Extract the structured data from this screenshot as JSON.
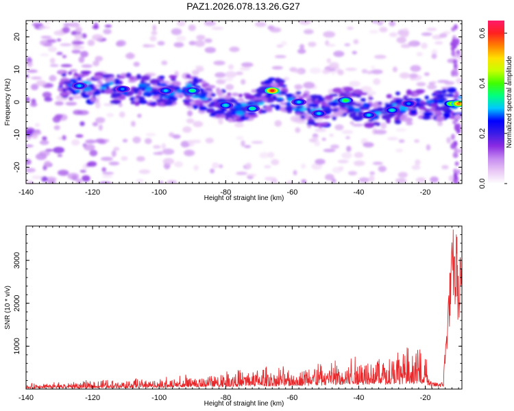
{
  "title": "PAZ1.2026.078.13.26.G27",
  "chart_data": [
    {
      "type": "heatmap",
      "name": "spectrogram",
      "xlabel": "Height of straight line (km)",
      "ylabel": "Frequency (Hz)",
      "xlim": [
        -140,
        -9
      ],
      "ylim": [
        -25,
        25
      ],
      "xticks": [
        -140,
        -120,
        -100,
        -80,
        -60,
        -40,
        -20
      ],
      "yticks": [
        -20,
        -10,
        0,
        10,
        20
      ],
      "colorbar": {
        "label": "Normalized spectral amplitude",
        "range": [
          0.0,
          0.65
        ],
        "ticks": [
          0.0,
          0.2,
          0.4,
          0.6
        ],
        "colors": [
          "#ffffff",
          "#e9c8f5",
          "#c58af0",
          "#8a2be2",
          "#3a1ce6",
          "#0000ff",
          "#00c8ff",
          "#00ff80",
          "#40ff00",
          "#c8ff00",
          "#ffe000",
          "#ff8000",
          "#ff2020",
          "#ff1a6a"
        ]
      },
      "ridge": [
        {
          "x": -128,
          "y": 6
        },
        {
          "x": -120,
          "y": 4.5
        },
        {
          "x": -110,
          "y": 4
        },
        {
          "x": -100,
          "y": 3.5
        },
        {
          "x": -90,
          "y": 3.5
        },
        {
          "x": -85,
          "y": 1
        },
        {
          "x": -80,
          "y": -1
        },
        {
          "x": -75,
          "y": -2
        },
        {
          "x": -70,
          "y": 1
        },
        {
          "x": -65,
          "y": 3
        },
        {
          "x": -60,
          "y": 0
        },
        {
          "x": -55,
          "y": -2
        },
        {
          "x": -50,
          "y": -3
        },
        {
          "x": -45,
          "y": 0
        },
        {
          "x": -40,
          "y": -1
        },
        {
          "x": -35,
          "y": -4
        },
        {
          "x": -30,
          "y": -2
        },
        {
          "x": -25,
          "y": -1
        },
        {
          "x": -20,
          "y": -0.5
        },
        {
          "x": -15,
          "y": -1
        },
        {
          "x": -10,
          "y": -0.5
        }
      ],
      "peaks": [
        {
          "x": -124,
          "y": 5,
          "value": 0.3
        },
        {
          "x": -111,
          "y": 4,
          "value": 0.28
        },
        {
          "x": -98,
          "y": 3.5,
          "value": 0.3
        },
        {
          "x": -90,
          "y": 3.5,
          "value": 0.35
        },
        {
          "x": -80,
          "y": -1,
          "value": 0.32
        },
        {
          "x": -72,
          "y": -2,
          "value": 0.34
        },
        {
          "x": -66,
          "y": 3.5,
          "value": 0.6
        },
        {
          "x": -58,
          "y": 0,
          "value": 0.3
        },
        {
          "x": -52,
          "y": -3.5,
          "value": 0.3
        },
        {
          "x": -44,
          "y": 0.5,
          "value": 0.38
        },
        {
          "x": -37,
          "y": -4,
          "value": 0.3
        },
        {
          "x": -30,
          "y": -2.5,
          "value": 0.32
        },
        {
          "x": -25,
          "y": -0.5,
          "value": 0.28
        },
        {
          "x": -12,
          "y": -0.5,
          "value": 0.45
        },
        {
          "x": -10,
          "y": -0.5,
          "value": 0.55
        }
      ]
    },
    {
      "type": "line",
      "name": "snr",
      "xlabel": "Height of straight line (km)",
      "ylabel": "SNR (10 * v/v)",
      "xlim": [
        -140,
        -9
      ],
      "ylim": [
        0,
        3800
      ],
      "xticks": [
        -140,
        -120,
        -100,
        -80,
        -60,
        -40,
        -20
      ],
      "yticks": [
        1000,
        2000,
        3000
      ],
      "color": "#e8272a",
      "series": [
        {
          "name": "SNR",
          "x": [
            -140,
            -130,
            -120,
            -110,
            -100,
            -90,
            -80,
            -70,
            -60,
            -55,
            -50,
            -45,
            -40,
            -35,
            -30,
            -25,
            -22,
            -20,
            -18,
            -16,
            -15,
            -14,
            -13,
            -12,
            -11.5,
            -11,
            -10.5,
            -10,
            -9.5,
            -9
          ],
          "y": [
            100,
            140,
            170,
            200,
            220,
            280,
            360,
            420,
            450,
            500,
            560,
            620,
            680,
            720,
            760,
            800,
            840,
            900,
            100,
            120,
            350,
            900,
            2300,
            3300,
            3700,
            3000,
            3800,
            2200,
            3100,
            2700
          ]
        }
      ]
    }
  ]
}
